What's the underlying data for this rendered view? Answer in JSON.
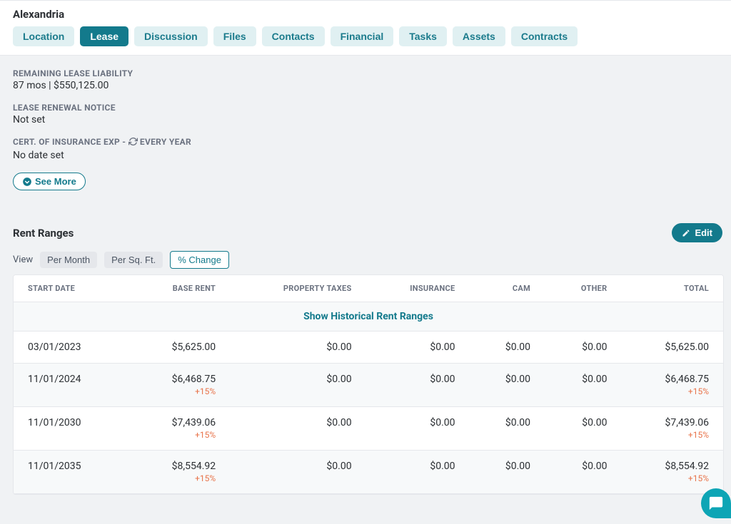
{
  "header": {
    "title": "Alexandria",
    "tabs": [
      {
        "label": "Location",
        "active": false
      },
      {
        "label": "Lease",
        "active": true
      },
      {
        "label": "Discussion",
        "active": false
      },
      {
        "label": "Files",
        "active": false
      },
      {
        "label": "Contacts",
        "active": false
      },
      {
        "label": "Financial",
        "active": false
      },
      {
        "label": "Tasks",
        "active": false
      },
      {
        "label": "Assets",
        "active": false
      },
      {
        "label": "Contracts",
        "active": false
      }
    ]
  },
  "lease_info": {
    "remaining_liability_label": "REMAINING LEASE LIABILITY",
    "remaining_liability_value": "87 mos | $550,125.00",
    "renewal_notice_label": "LEASE RENEWAL NOTICE",
    "renewal_notice_value": "Not set",
    "cert_insurance_label_pre": "CERT. OF INSURANCE EXP - ",
    "cert_insurance_label_post": " EVERY YEAR",
    "cert_insurance_value": "No date set",
    "see_more_label": "See More"
  },
  "rent_ranges": {
    "section_title": "Rent Ranges",
    "edit_label": "Edit",
    "view_label": "View",
    "view_options": [
      "Per Month",
      "Per Sq. Ft.",
      "% Change"
    ],
    "columns": [
      "START DATE",
      "BASE RENT",
      "PROPERTY TAXES",
      "INSURANCE",
      "CAM",
      "OTHER",
      "TOTAL"
    ],
    "historical_link": "Show Historical Rent Ranges",
    "rows": [
      {
        "date": "03/01/2023",
        "base_rent": "$5,625.00",
        "base_rent_pct": "",
        "taxes": "$0.00",
        "insurance": "$0.00",
        "cam": "$0.00",
        "other": "$0.00",
        "total": "$5,625.00",
        "total_pct": "",
        "alt": false
      },
      {
        "date": "11/01/2024",
        "base_rent": "$6,468.75",
        "base_rent_pct": "+15%",
        "taxes": "$0.00",
        "insurance": "$0.00",
        "cam": "$0.00",
        "other": "$0.00",
        "total": "$6,468.75",
        "total_pct": "+15%",
        "alt": true
      },
      {
        "date": "11/01/2030",
        "base_rent": "$7,439.06",
        "base_rent_pct": "+15%",
        "taxes": "$0.00",
        "insurance": "$0.00",
        "cam": "$0.00",
        "other": "$0.00",
        "total": "$7,439.06",
        "total_pct": "+15%",
        "alt": false
      },
      {
        "date": "11/01/2035",
        "base_rent": "$8,554.92",
        "base_rent_pct": "+15%",
        "taxes": "$0.00",
        "insurance": "$0.00",
        "cam": "$0.00",
        "other": "$0.00",
        "total": "$8,554.92",
        "total_pct": "+15%",
        "alt": true
      }
    ]
  },
  "colors": {
    "teal": "#137a8c",
    "teal_light": "#e0f0f2",
    "orange": "#e8734a",
    "bg": "#f0f2f4",
    "border": "#e5e7eb",
    "text": "#2b2f33",
    "muted": "#6b7280"
  }
}
